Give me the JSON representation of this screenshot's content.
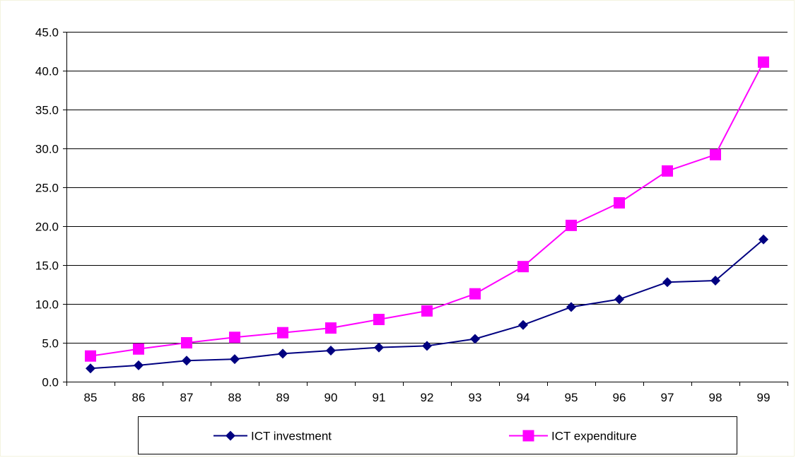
{
  "chart_data": {
    "type": "line",
    "categories": [
      "85",
      "86",
      "87",
      "88",
      "89",
      "90",
      "91",
      "92",
      "93",
      "94",
      "95",
      "96",
      "97",
      "98",
      "99"
    ],
    "series": [
      {
        "name": "ICT investment",
        "values": [
          1.7,
          2.1,
          2.7,
          2.9,
          3.6,
          4.0,
          4.4,
          4.6,
          5.5,
          7.3,
          9.6,
          10.6,
          12.8,
          13.0,
          18.3
        ],
        "color": "#000080",
        "marker": "diamond"
      },
      {
        "name": "ICT expenditure",
        "values": [
          3.3,
          4.2,
          5.0,
          5.7,
          6.3,
          6.9,
          8.0,
          9.1,
          11.3,
          14.8,
          20.1,
          23.0,
          27.1,
          29.2,
          41.1
        ],
        "color": "#ff00ff",
        "marker": "square"
      }
    ],
    "ylim": [
      0,
      45
    ],
    "yticks": [
      "0.0",
      "5.0",
      "10.0",
      "15.0",
      "20.0",
      "25.0",
      "30.0",
      "35.0",
      "40.0",
      "45.0"
    ],
    "grid": true,
    "legend_position": "bottom",
    "title": "",
    "xlabel": "",
    "ylabel": ""
  }
}
